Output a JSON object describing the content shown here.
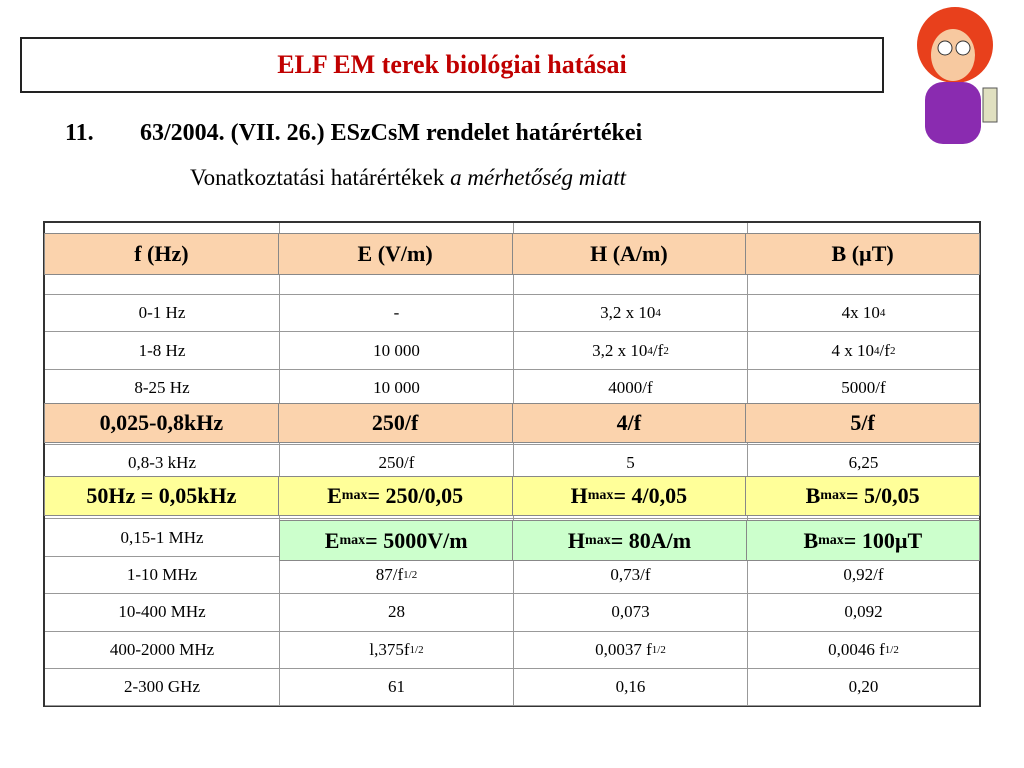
{
  "header": {
    "title": "ELF EM terek biológiai hatásai",
    "number": "11.",
    "heading": "63/2004. (VII. 26.) ESzCsM rendelet határértékei",
    "subtitle": "Vonatkoztatási határértékek",
    "subtitle_italic": "a mérhetőség miatt"
  },
  "table": {
    "rows": [
      [
        [
          "0-1 Hz"
        ],
        [
          "-"
        ],
        [
          "3,2 x 10",
          "4"
        ],
        [
          "4x 10",
          "4"
        ]
      ],
      [
        [
          "1-8 Hz"
        ],
        [
          "10 000"
        ],
        [
          "3,2 x 10",
          "4",
          "/f",
          "2"
        ],
        [
          "4 x 10",
          "4",
          "/f",
          "2"
        ]
      ],
      [
        [
          "8-25 Hz"
        ],
        [
          "10 000"
        ],
        [
          "4000/f"
        ],
        [
          "5000/f"
        ]
      ],
      [
        [
          "0,8-3 kHz"
        ],
        [
          "250/f"
        ],
        [
          "5"
        ],
        [
          "6,25"
        ]
      ],
      [
        [
          "0,15-1 MHz"
        ]
      ],
      [
        [
          "1-10 MHz"
        ],
        [
          "87/f",
          "1/2"
        ],
        [
          "0,73/f"
        ],
        [
          "0,92/f"
        ]
      ],
      [
        [
          "10-400 MHz"
        ],
        [
          "28"
        ],
        [
          "0,073"
        ],
        [
          "0,092"
        ]
      ],
      [
        [
          "400-2000 MHz"
        ],
        [
          "l,375f",
          "1/2"
        ],
        [
          "0,0037 f",
          "1/2"
        ],
        [
          "0,0046 f",
          "1/2"
        ]
      ],
      [
        [
          "2-300 GHz"
        ],
        [
          "61"
        ],
        [
          "0,16"
        ],
        [
          "0,20"
        ]
      ]
    ]
  },
  "overlays": {
    "header_row": [
      [
        "f (Hz)"
      ],
      [
        "E (V/m)"
      ],
      [
        "H (A/m)"
      ],
      [
        "B (µT)"
      ]
    ],
    "highlight_row": [
      [
        "0,025-0,8kHz"
      ],
      [
        "250/f"
      ],
      [
        "4/f"
      ],
      [
        "5/f"
      ]
    ],
    "yellow_row": [
      [
        "50Hz = 0,05kHz"
      ],
      [
        "E",
        "max",
        "= 250/0,05"
      ],
      [
        "H",
        "max",
        "= 4/0,05"
      ],
      [
        "B",
        "max",
        "= 5/0,05"
      ]
    ],
    "green_row": [
      [
        "E",
        "max",
        "= 5000V/m"
      ],
      [
        "H",
        "max",
        "= 80A/m"
      ],
      [
        "B",
        "max",
        "= 100µT"
      ]
    ]
  }
}
